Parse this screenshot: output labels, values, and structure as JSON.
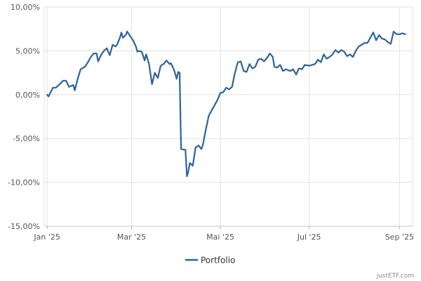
{
  "chart_data": {
    "type": "line",
    "title": "",
    "xlabel": "",
    "ylabel": "",
    "ylim": [
      -15,
      10
    ],
    "y_ticks": [
      10,
      5,
      0,
      -5,
      -10,
      -15
    ],
    "y_tick_labels": [
      "10,00%",
      "5,00%",
      "0,00%",
      "-5,00%",
      "-10,00%",
      "-15,00%"
    ],
    "x_ticks": [
      {
        "date": "2025-01-02",
        "label": "Jan '25"
      },
      {
        "date": "2025-03-01",
        "label": "Mar '25"
      },
      {
        "date": "2025-05-01",
        "label": "Mai '25"
      },
      {
        "date": "2025-07-01",
        "label": "Jul '25"
      },
      {
        "date": "2025-09-01",
        "label": "Sep '25"
      }
    ],
    "xlim": [
      "2024-12-31",
      "2025-09-10"
    ],
    "grid": true,
    "legend_position": "bottom-center",
    "series": [
      {
        "name": "Portfolio",
        "color": "#2e6399",
        "points": [
          [
            "2025-01-02",
            0.0
          ],
          [
            "2025-01-03",
            -0.2
          ],
          [
            "2025-01-06",
            0.8
          ],
          [
            "2025-01-08",
            0.8
          ],
          [
            "2025-01-10",
            1.1
          ],
          [
            "2025-01-13",
            1.6
          ],
          [
            "2025-01-15",
            1.6
          ],
          [
            "2025-01-17",
            0.9
          ],
          [
            "2025-01-20",
            1.1
          ],
          [
            "2025-01-21",
            0.5
          ],
          [
            "2025-01-23",
            1.8
          ],
          [
            "2025-01-25",
            2.9
          ],
          [
            "2025-01-28",
            3.2
          ],
          [
            "2025-01-30",
            3.7
          ],
          [
            "2025-02-01",
            4.3
          ],
          [
            "2025-02-03",
            4.7
          ],
          [
            "2025-02-05",
            4.7
          ],
          [
            "2025-02-06",
            3.8
          ],
          [
            "2025-02-08",
            4.5
          ],
          [
            "2025-02-10",
            5.0
          ],
          [
            "2025-02-12",
            5.3
          ],
          [
            "2025-02-14",
            4.5
          ],
          [
            "2025-02-16",
            5.7
          ],
          [
            "2025-02-18",
            5.5
          ],
          [
            "2025-02-19",
            5.7
          ],
          [
            "2025-02-21",
            6.5
          ],
          [
            "2025-02-22",
            7.1
          ],
          [
            "2025-02-23",
            6.5
          ],
          [
            "2025-02-25",
            6.8
          ],
          [
            "2025-02-26",
            7.2
          ],
          [
            "2025-02-28",
            6.7
          ],
          [
            "2025-03-02",
            6.2
          ],
          [
            "2025-03-04",
            5.5
          ],
          [
            "2025-03-05",
            4.9
          ],
          [
            "2025-03-06",
            5.0
          ],
          [
            "2025-03-08",
            4.9
          ],
          [
            "2025-03-10",
            3.9
          ],
          [
            "2025-03-11",
            4.6
          ],
          [
            "2025-03-13",
            3.5
          ],
          [
            "2025-03-15",
            1.2
          ],
          [
            "2025-03-17",
            2.5
          ],
          [
            "2025-03-19",
            1.9
          ],
          [
            "2025-03-21",
            3.3
          ],
          [
            "2025-03-23",
            3.5
          ],
          [
            "2025-03-25",
            3.9
          ],
          [
            "2025-03-27",
            3.5
          ],
          [
            "2025-03-28",
            3.6
          ],
          [
            "2025-03-30",
            2.9
          ],
          [
            "2025-04-01",
            1.8
          ],
          [
            "2025-04-02",
            2.6
          ],
          [
            "2025-04-03",
            2.5
          ],
          [
            "2025-04-04",
            -6.2
          ],
          [
            "2025-04-07",
            -6.3
          ],
          [
            "2025-04-08",
            -9.3
          ],
          [
            "2025-04-09",
            -8.8
          ],
          [
            "2025-04-10",
            -7.8
          ],
          [
            "2025-04-12",
            -8.1
          ],
          [
            "2025-04-14",
            -6.0
          ],
          [
            "2025-04-16",
            -5.8
          ],
          [
            "2025-04-18",
            -6.2
          ],
          [
            "2025-04-19",
            -5.7
          ],
          [
            "2025-04-21",
            -4.0
          ],
          [
            "2025-04-23",
            -2.4
          ],
          [
            "2025-04-25",
            -1.8
          ],
          [
            "2025-04-27",
            -1.2
          ],
          [
            "2025-04-29",
            -0.6
          ],
          [
            "2025-05-01",
            0.2
          ],
          [
            "2025-05-03",
            0.3
          ],
          [
            "2025-05-05",
            0.8
          ],
          [
            "2025-05-07",
            0.6
          ],
          [
            "2025-05-09",
            0.9
          ],
          [
            "2025-05-11",
            2.5
          ],
          [
            "2025-05-13",
            3.7
          ],
          [
            "2025-05-15",
            3.8
          ],
          [
            "2025-05-17",
            2.7
          ],
          [
            "2025-05-19",
            2.6
          ],
          [
            "2025-05-21",
            3.5
          ],
          [
            "2025-05-23",
            3.0
          ],
          [
            "2025-05-25",
            3.2
          ],
          [
            "2025-05-27",
            4.0
          ],
          [
            "2025-05-29",
            4.1
          ],
          [
            "2025-05-31",
            3.8
          ],
          [
            "2025-06-02",
            4.2
          ],
          [
            "2025-06-04",
            4.7
          ],
          [
            "2025-06-06",
            4.3
          ],
          [
            "2025-06-07",
            3.2
          ],
          [
            "2025-06-09",
            3.1
          ],
          [
            "2025-06-11",
            3.4
          ],
          [
            "2025-06-13",
            2.7
          ],
          [
            "2025-06-15",
            2.9
          ],
          [
            "2025-06-18",
            2.7
          ],
          [
            "2025-06-20",
            2.9
          ],
          [
            "2025-06-22",
            2.3
          ],
          [
            "2025-06-24",
            3.0
          ],
          [
            "2025-06-26",
            2.9
          ],
          [
            "2025-06-28",
            3.4
          ],
          [
            "2025-07-01",
            3.3
          ],
          [
            "2025-07-03",
            3.4
          ],
          [
            "2025-07-05",
            3.5
          ],
          [
            "2025-07-07",
            4.0
          ],
          [
            "2025-07-09",
            3.7
          ],
          [
            "2025-07-11",
            4.6
          ],
          [
            "2025-07-13",
            4.1
          ],
          [
            "2025-07-15",
            4.3
          ],
          [
            "2025-07-17",
            4.6
          ],
          [
            "2025-07-19",
            5.1
          ],
          [
            "2025-07-21",
            4.8
          ],
          [
            "2025-07-23",
            5.1
          ],
          [
            "2025-07-25",
            4.9
          ],
          [
            "2025-07-27",
            4.4
          ],
          [
            "2025-07-29",
            4.6
          ],
          [
            "2025-07-31",
            4.3
          ],
          [
            "2025-08-02",
            5.0
          ],
          [
            "2025-08-04",
            5.5
          ],
          [
            "2025-08-06",
            5.7
          ],
          [
            "2025-08-08",
            5.9
          ],
          [
            "2025-08-10",
            5.9
          ],
          [
            "2025-08-12",
            6.5
          ],
          [
            "2025-08-14",
            7.1
          ],
          [
            "2025-08-16",
            6.2
          ],
          [
            "2025-08-18",
            6.8
          ],
          [
            "2025-08-20",
            6.4
          ],
          [
            "2025-08-22",
            6.3
          ],
          [
            "2025-08-24",
            6.0
          ],
          [
            "2025-08-26",
            5.8
          ],
          [
            "2025-08-28",
            7.2
          ],
          [
            "2025-08-30",
            6.9
          ],
          [
            "2025-09-01",
            6.9
          ],
          [
            "2025-09-03",
            7.0
          ],
          [
            "2025-09-05",
            6.9
          ]
        ]
      }
    ]
  },
  "colors": {
    "line": "#2e6399",
    "grid": "#e3e3e3",
    "axis_text": "#555555"
  },
  "credit": "justETF.com"
}
